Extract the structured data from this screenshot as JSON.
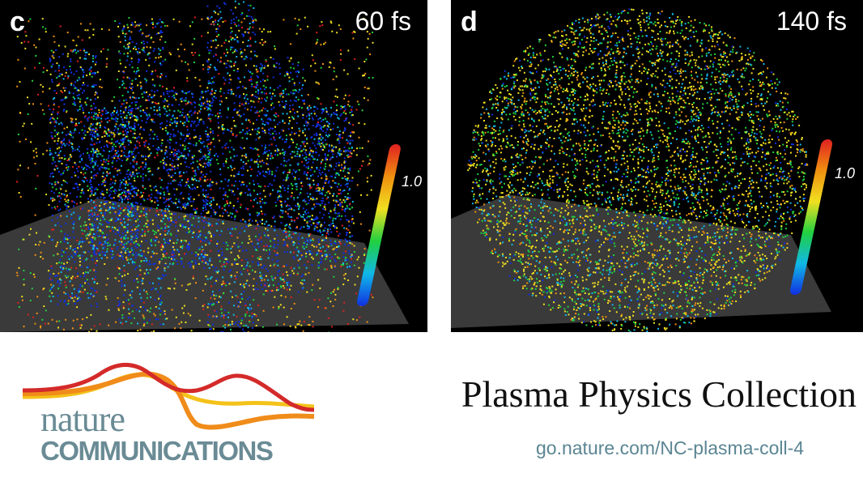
{
  "panels": {
    "c": {
      "letter": "c",
      "time": "60 fs",
      "colorbar_label": "1.0"
    },
    "d": {
      "letter": "d",
      "time": "140 fs",
      "colorbar_label": "1.0"
    }
  },
  "brand": {
    "name_top": "nature",
    "name_bottom": "COMMUNICATIONS",
    "colors": {
      "text": "#6a8b95",
      "wave_red": "#d42a2a",
      "wave_orange": "#f08c1a",
      "wave_yellow": "#f4c21a"
    }
  },
  "collection": {
    "title": "Plasma Physics Collection",
    "url": "go.nature.com/NC-plasma-coll-4"
  },
  "colormap": [
    "#1030e0",
    "#10b8e8",
    "#20d040",
    "#f0e020",
    "#f09010",
    "#e02020"
  ]
}
